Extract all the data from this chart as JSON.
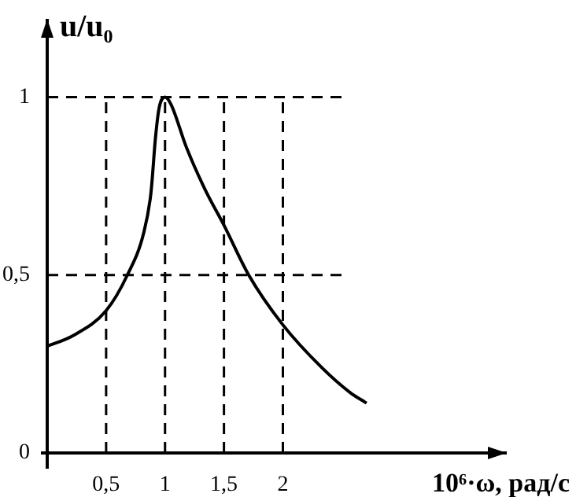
{
  "chart_data": {
    "type": "line",
    "xlabel": "10⁶·ω, рад/с",
    "ylabel": "u/u₀",
    "x": [
      0,
      0.22,
      0.5,
      0.68,
      0.82,
      0.88,
      0.92,
      0.95,
      1,
      1.05,
      1.18,
      1.34,
      1.5,
      1.71,
      2,
      2.33,
      2.57,
      2.71
    ],
    "series": [
      {
        "color": "#000000",
        "values": [
          0.3,
          0.33,
          0.4,
          0.5,
          0.62,
          0.73,
          0.89,
          0.97,
          1,
          0.98,
          0.86,
          0.74,
          0.64,
          0.5,
          0.36,
          0.24,
          0.17,
          0.14
        ]
      }
    ],
    "xlim": [
      0,
      3.9
    ],
    "ylim": [
      0,
      1.22
    ],
    "xticks": [
      {
        "value": 0.5,
        "label": "0,5"
      },
      1,
      {
        "value": 1.5,
        "label": "1,5"
      },
      2
    ],
    "yticks": [
      {
        "value": 0,
        "label": "0"
      },
      {
        "value": 0.5,
        "label": "0,5"
      },
      1
    ],
    "grid": "x",
    "ref_lines": [
      {
        "axis": "y",
        "value": 0.5,
        "line_style": "dashed"
      },
      {
        "axis": "y",
        "value": 1,
        "line_style": "dashed"
      }
    ],
    "legend": false,
    "marker": "none",
    "line_style": "solid"
  }
}
